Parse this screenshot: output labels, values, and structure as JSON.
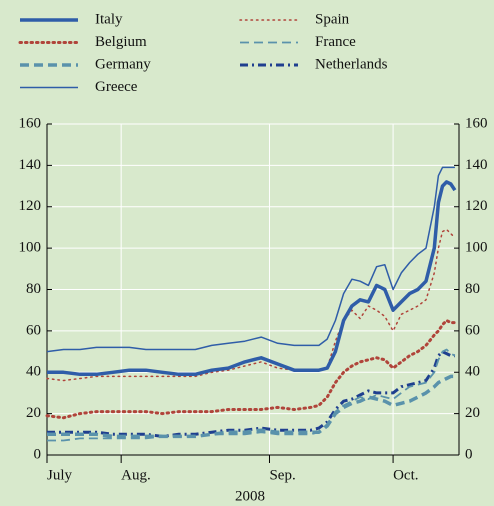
{
  "chart_data": {
    "type": "line",
    "xlabel": "2008",
    "x": [
      0,
      4,
      8,
      12,
      16,
      20,
      24,
      28,
      32,
      36,
      40,
      44,
      48,
      52,
      56,
      60,
      64,
      66,
      68,
      70,
      72,
      74,
      76,
      78,
      80,
      82,
      84,
      86,
      88,
      90,
      92,
      94,
      95,
      96,
      97,
      98,
      99
    ],
    "xlim": [
      0,
      100
    ],
    "xticks": [
      {
        "value": 0,
        "label": "July"
      },
      {
        "value": 18,
        "label": "Aug."
      },
      {
        "value": 54,
        "label": "Sep."
      },
      {
        "value": 84,
        "label": "Oct."
      }
    ],
    "ylim": [
      0,
      160
    ],
    "yticks": [
      0,
      20,
      40,
      60,
      80,
      100,
      120,
      140,
      160
    ],
    "y2lim": [
      0,
      160
    ],
    "y2ticks": [
      0,
      20,
      40,
      60,
      80,
      100,
      120,
      140,
      160
    ],
    "grid": true,
    "series": [
      {
        "name": "Italy",
        "color": "#2f5da8",
        "linewidth": 3.5,
        "style": "solid",
        "values": [
          40,
          40,
          39,
          39,
          40,
          41,
          41,
          40,
          39,
          39,
          41,
          42,
          45,
          47,
          44,
          41,
          41,
          41,
          42,
          50,
          65,
          72,
          75,
          74,
          82,
          80,
          70,
          74,
          78,
          80,
          84,
          100,
          122,
          130,
          132,
          131,
          128
        ]
      },
      {
        "name": "Belgium",
        "color": "#b0443a",
        "linewidth": 3,
        "style": "dotted",
        "values": [
          19,
          18,
          20,
          21,
          21,
          21,
          21,
          20,
          21,
          21,
          21,
          22,
          22,
          22,
          23,
          22,
          23,
          24,
          28,
          35,
          40,
          43,
          45,
          46,
          47,
          46,
          42,
          45,
          48,
          50,
          53,
          58,
          60,
          63,
          65,
          64,
          64
        ]
      },
      {
        "name": "Germany",
        "color": "#5a92ab",
        "linewidth": 3.5,
        "style": "dashed",
        "values": [
          10,
          10,
          10,
          10,
          9,
          9,
          9,
          9,
          9,
          9,
          10,
          11,
          11,
          12,
          11,
          11,
          11,
          11,
          14,
          20,
          23,
          25,
          26,
          28,
          27,
          26,
          24,
          25,
          26,
          28,
          30,
          33,
          35,
          36,
          37,
          38,
          38
        ]
      },
      {
        "name": "Greece",
        "color": "#2f5da8",
        "linewidth": 1.5,
        "style": "solid",
        "values": [
          50,
          51,
          51,
          52,
          52,
          52,
          51,
          51,
          51,
          51,
          53,
          54,
          55,
          57,
          54,
          53,
          53,
          53,
          56,
          65,
          78,
          85,
          84,
          82,
          91,
          92,
          80,
          88,
          93,
          97,
          100,
          120,
          135,
          139,
          139,
          139,
          139
        ]
      },
      {
        "name": "Spain",
        "color": "#b0443a",
        "linewidth": 1.5,
        "style": "dotted",
        "values": [
          37,
          36,
          37,
          38,
          38,
          38,
          38,
          38,
          38,
          38,
          40,
          41,
          43,
          45,
          42,
          41,
          41,
          41,
          42,
          55,
          65,
          70,
          66,
          72,
          70,
          67,
          60,
          68,
          70,
          72,
          75,
          88,
          100,
          108,
          109,
          107,
          105
        ]
      },
      {
        "name": "France",
        "color": "#5a92ab",
        "linewidth": 1.8,
        "style": "dashed",
        "values": [
          7,
          7,
          8,
          8,
          8,
          8,
          8,
          9,
          9,
          9,
          10,
          10,
          10,
          11,
          10,
          10,
          10,
          11,
          15,
          21,
          24,
          26,
          28,
          27,
          29,
          28,
          27,
          30,
          33,
          34,
          35,
          40,
          46,
          50,
          51,
          49,
          48
        ]
      },
      {
        "name": "Netherlands",
        "color": "#1f3f8f",
        "linewidth": 3,
        "style": "dashdot",
        "values": [
          11,
          11,
          11,
          11,
          10,
          10,
          10,
          9,
          10,
          10,
          11,
          12,
          12,
          13,
          12,
          12,
          12,
          13,
          16,
          22,
          26,
          27,
          29,
          31,
          30,
          30,
          30,
          33,
          34,
          35,
          36,
          42,
          48,
          50,
          49,
          48,
          48
        ]
      }
    ]
  }
}
